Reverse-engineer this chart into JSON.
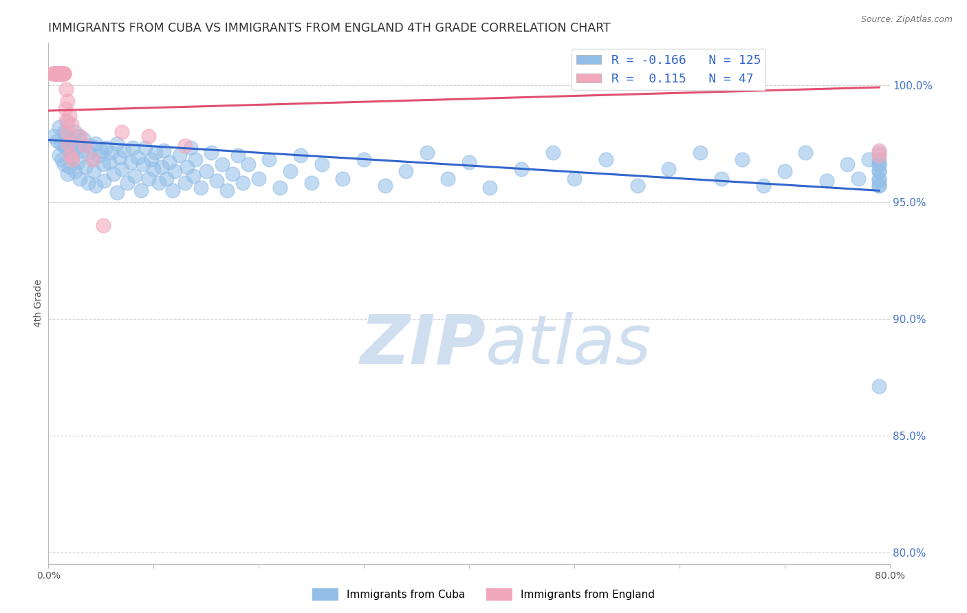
{
  "title": "IMMIGRANTS FROM CUBA VS IMMIGRANTS FROM ENGLAND 4TH GRADE CORRELATION CHART",
  "source": "Source: ZipAtlas.com",
  "ylabel_label": "4th Grade",
  "xlim": [
    0.0,
    0.8
  ],
  "ylim": [
    0.795,
    1.018
  ],
  "blue_R": -0.166,
  "blue_N": 125,
  "pink_R": 0.115,
  "pink_N": 47,
  "blue_color": "#92BEE8",
  "pink_color": "#F2A8BC",
  "blue_line_color": "#3366CC",
  "pink_line_color": "#E05070",
  "watermark_color": "#D0DFF0",
  "background_color": "#ffffff",
  "grid_color": "#cccccc",
  "title_color": "#333333",
  "ytick_color": "#4472C4",
  "xtick_color": "#555555",
  "ylabel_color": "#555555",
  "blue_x": [
    0.005,
    0.008,
    0.01,
    0.01,
    0.012,
    0.013,
    0.015,
    0.015,
    0.015,
    0.016,
    0.017,
    0.018,
    0.018,
    0.02,
    0.02,
    0.02,
    0.022,
    0.023,
    0.025,
    0.025,
    0.026,
    0.028,
    0.028,
    0.03,
    0.03,
    0.032,
    0.033,
    0.035,
    0.038,
    0.038,
    0.04,
    0.042,
    0.043,
    0.045,
    0.045,
    0.048,
    0.05,
    0.052,
    0.053,
    0.055,
    0.058,
    0.06,
    0.062,
    0.065,
    0.065,
    0.068,
    0.07,
    0.072,
    0.075,
    0.078,
    0.08,
    0.082,
    0.085,
    0.088,
    0.09,
    0.092,
    0.095,
    0.098,
    0.1,
    0.102,
    0.105,
    0.108,
    0.11,
    0.112,
    0.115,
    0.118,
    0.12,
    0.125,
    0.13,
    0.132,
    0.135,
    0.138,
    0.14,
    0.145,
    0.15,
    0.155,
    0.16,
    0.165,
    0.17,
    0.175,
    0.18,
    0.185,
    0.19,
    0.2,
    0.21,
    0.22,
    0.23,
    0.24,
    0.25,
    0.26,
    0.28,
    0.3,
    0.32,
    0.34,
    0.36,
    0.38,
    0.4,
    0.42,
    0.45,
    0.48,
    0.5,
    0.53,
    0.56,
    0.59,
    0.62,
    0.64,
    0.66,
    0.68,
    0.7,
    0.72,
    0.74,
    0.76,
    0.77,
    0.78,
    0.79,
    0.79,
    0.79,
    0.79,
    0.79,
    0.79,
    0.79,
    0.79,
    0.79,
    0.79,
    0.79
  ],
  "blue_y": [
    0.978,
    0.976,
    0.982,
    0.97,
    0.975,
    0.968,
    0.98,
    0.974,
    0.966,
    0.979,
    0.973,
    0.984,
    0.962,
    0.977,
    0.971,
    0.965,
    0.975,
    0.969,
    0.98,
    0.963,
    0.973,
    0.978,
    0.967,
    0.974,
    0.96,
    0.972,
    0.977,
    0.965,
    0.971,
    0.958,
    0.974,
    0.968,
    0.963,
    0.975,
    0.957,
    0.97,
    0.972,
    0.966,
    0.959,
    0.973,
    0.967,
    0.971,
    0.962,
    0.975,
    0.954,
    0.969,
    0.964,
    0.972,
    0.958,
    0.967,
    0.973,
    0.961,
    0.969,
    0.955,
    0.966,
    0.973,
    0.96,
    0.968,
    0.964,
    0.971,
    0.958,
    0.965,
    0.972,
    0.96,
    0.967,
    0.955,
    0.963,
    0.97,
    0.958,
    0.965,
    0.973,
    0.961,
    0.968,
    0.956,
    0.963,
    0.971,
    0.959,
    0.966,
    0.955,
    0.962,
    0.97,
    0.958,
    0.966,
    0.96,
    0.968,
    0.956,
    0.963,
    0.97,
    0.958,
    0.966,
    0.96,
    0.968,
    0.957,
    0.963,
    0.971,
    0.96,
    0.967,
    0.956,
    0.964,
    0.971,
    0.96,
    0.968,
    0.957,
    0.964,
    0.971,
    0.96,
    0.968,
    0.957,
    0.963,
    0.971,
    0.959,
    0.966,
    0.96,
    0.968,
    0.957,
    0.963,
    0.871,
    0.966,
    0.96,
    0.968,
    0.957,
    0.963,
    0.971,
    0.959,
    0.966
  ],
  "pink_x": [
    0.004,
    0.005,
    0.006,
    0.006,
    0.007,
    0.007,
    0.007,
    0.008,
    0.008,
    0.009,
    0.009,
    0.009,
    0.01,
    0.01,
    0.01,
    0.01,
    0.011,
    0.011,
    0.012,
    0.012,
    0.012,
    0.013,
    0.013,
    0.013,
    0.014,
    0.015,
    0.015,
    0.015,
    0.016,
    0.017,
    0.017,
    0.018,
    0.018,
    0.019,
    0.02,
    0.021,
    0.022,
    0.023,
    0.03,
    0.035,
    0.042,
    0.052,
    0.07,
    0.095,
    0.13,
    0.79,
    0.79
  ],
  "pink_y": [
    1.005,
    1.005,
    1.005,
    1.005,
    1.005,
    1.005,
    1.005,
    1.005,
    1.005,
    1.005,
    1.005,
    1.005,
    1.005,
    1.005,
    1.005,
    1.005,
    1.005,
    1.005,
    1.005,
    1.005,
    1.005,
    1.005,
    1.005,
    1.005,
    1.005,
    1.005,
    1.005,
    1.005,
    0.99,
    0.985,
    0.998,
    0.98,
    0.993,
    0.975,
    0.987,
    0.97,
    0.983,
    0.968,
    0.978,
    0.974,
    0.968,
    0.94,
    0.98,
    0.978,
    0.974,
    0.972,
    0.97
  ],
  "blue_trendline": [
    0.9765,
    0.9548
  ],
  "pink_trendline": [
    0.989,
    0.999
  ],
  "x_tick_positions": [
    0.0,
    0.1,
    0.2,
    0.3,
    0.4,
    0.5,
    0.6,
    0.7,
    0.8
  ],
  "x_tick_labels": [
    "0.0%",
    "",
    "",
    "",
    "",
    "",
    "",
    "",
    "80.0%"
  ],
  "y_tick_positions": [
    0.8,
    0.85,
    0.9,
    0.95,
    1.0
  ],
  "y_tick_labels": [
    "80.0%",
    "85.0%",
    "90.0%",
    "95.0%",
    "100.0%"
  ]
}
